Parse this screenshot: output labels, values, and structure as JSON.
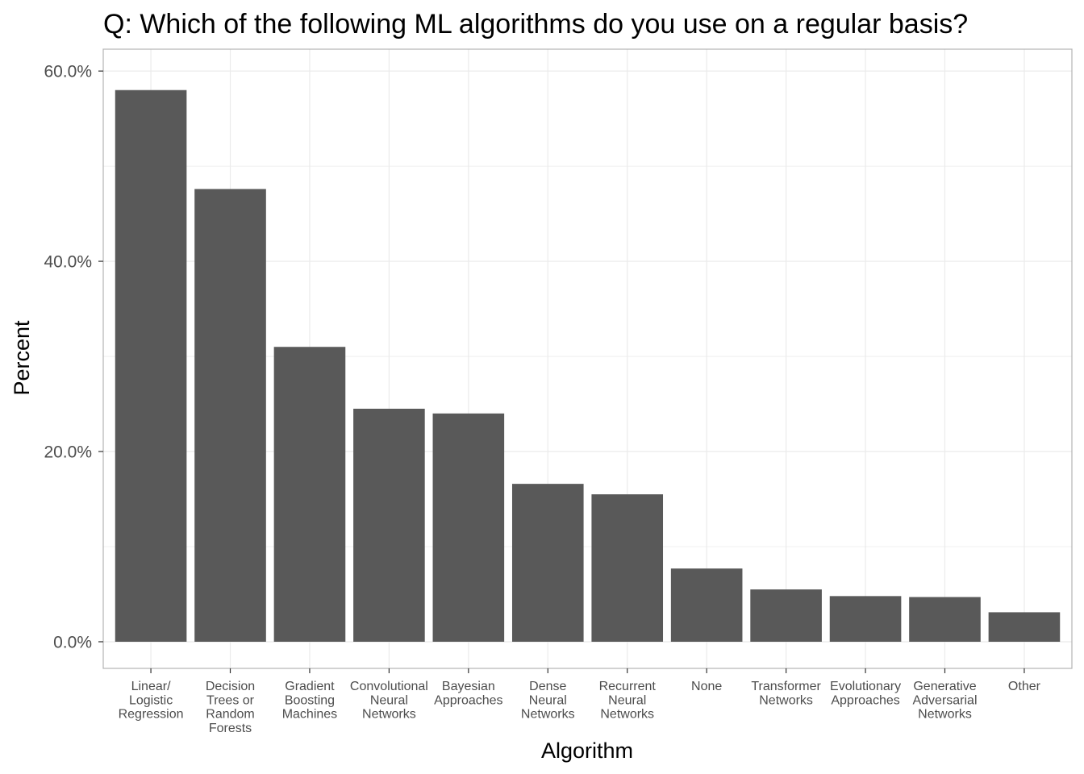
{
  "chart_data": {
    "type": "bar",
    "title": "Q: Which of the following ML algorithms do you use on a regular basis?",
    "xlabel": "Algorithm",
    "ylabel": "Percent",
    "categories": [
      [
        "Linear/",
        "Logistic",
        "Regression"
      ],
      [
        "Decision",
        "Trees or",
        "Random",
        "Forests"
      ],
      [
        "Gradient",
        "Boosting",
        "Machines"
      ],
      [
        "Convolutional",
        "Neural",
        "Networks"
      ],
      [
        "Bayesian",
        "Approaches"
      ],
      [
        "Dense",
        "Neural",
        "Networks"
      ],
      [
        "Recurrent",
        "Neural",
        "Networks"
      ],
      [
        "None"
      ],
      [
        "Transformer",
        "Networks"
      ],
      [
        "Evolutionary",
        "Approaches"
      ],
      [
        "Generative",
        "Adversarial",
        "Networks"
      ],
      [
        "Other"
      ]
    ],
    "values": [
      58.0,
      47.6,
      31.0,
      24.5,
      24.0,
      16.6,
      15.5,
      7.7,
      5.5,
      4.8,
      4.7,
      3.1
    ],
    "yticks": [
      "0.0%",
      "20.0%",
      "40.0%",
      "60.0%"
    ],
    "ytick_values": [
      0,
      20,
      40,
      60
    ],
    "ylim": [
      -2.8,
      62.3
    ],
    "grid": true,
    "legend": "none",
    "bar_color": "#595959",
    "grid_color": "#ebebeb",
    "border_color": "#b3b3b3"
  }
}
